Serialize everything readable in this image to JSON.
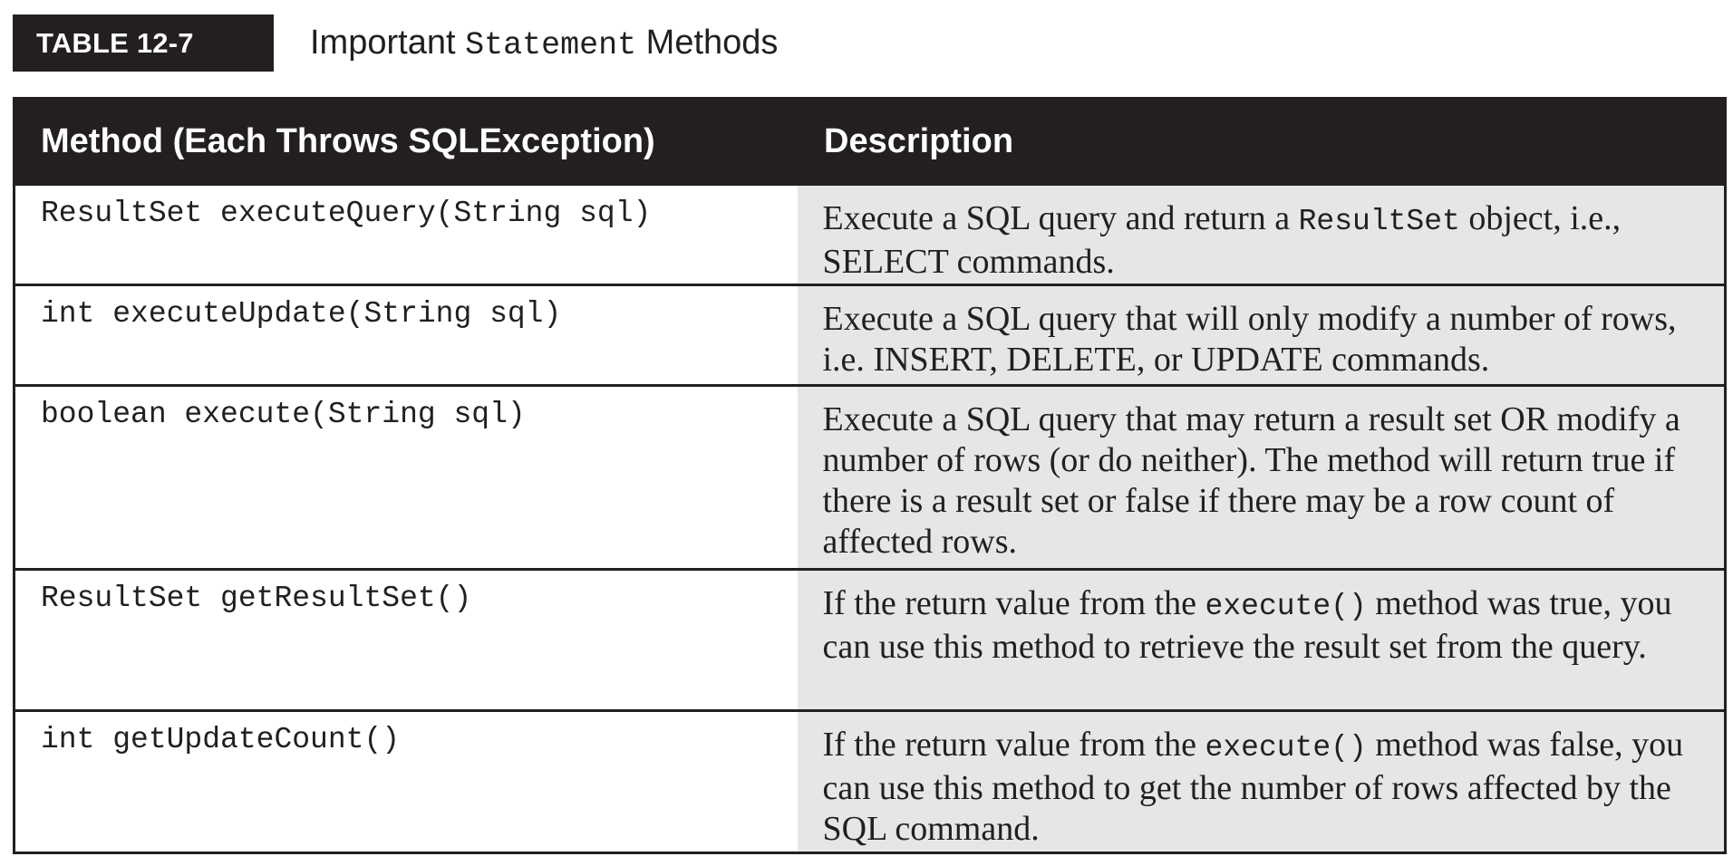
{
  "caption": {
    "label": "TABLE 12-7",
    "title_prefix": "Important ",
    "title_code": "Statement",
    "title_suffix": " Methods"
  },
  "table": {
    "headers": [
      "Method (Each Throws SQLException)",
      "Description"
    ],
    "rows": [
      {
        "method": "ResultSet executeQuery(String sql)",
        "desc_parts": [
          "Execute a SQL query and return a ",
          "ResultSet",
          " object, i.e., SELECT commands."
        ]
      },
      {
        "method": "int executeUpdate(String sql)",
        "desc_parts": [
          "Execute a SQL query that will only modify a number of rows, i.e. INSERT, DELETE, or UPDATE commands.",
          "",
          ""
        ]
      },
      {
        "method": "boolean execute(String sql)",
        "desc_parts": [
          "Execute a SQL query that may return a result set OR modify a number of rows (or do neither). The method will return true if there is a result set or false if there may be a row count of affected rows.",
          "",
          ""
        ]
      },
      {
        "method": "ResultSet getResultSet()",
        "desc_parts": [
          "If the return value from the ",
          "execute()",
          " method was true, you can use this method to retrieve the result set from the query."
        ]
      },
      {
        "method": "int getUpdateCount()",
        "desc_parts": [
          "If the return value from the ",
          "execute()",
          " method was false, you can use this method to get the number of rows affected by the SQL command."
        ]
      }
    ]
  },
  "colors": {
    "header_bg": "#231f20",
    "desc_bg": "#e6e6e6"
  }
}
